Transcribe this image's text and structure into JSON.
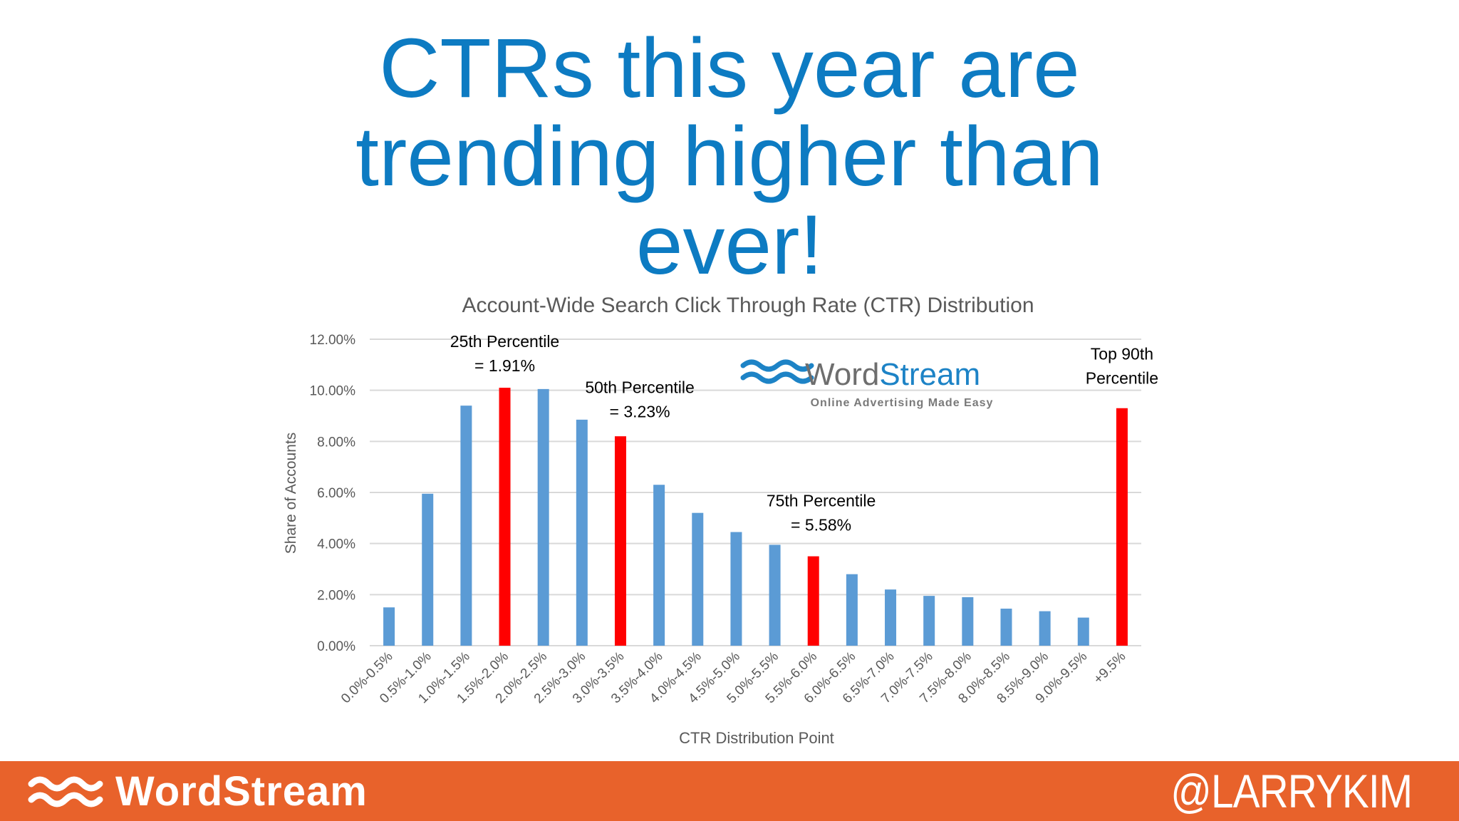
{
  "slide": {
    "title_lines": [
      "CTRs this year are",
      "trending higher than",
      "ever!"
    ]
  },
  "footer": {
    "brand": "WordStream",
    "handle": "@LARRYKIM",
    "background": "#e8622b"
  },
  "chart_logo": {
    "brand_word": "Word",
    "brand_word2": "Stream",
    "tagline": "Online Advertising Made Easy"
  },
  "chart_data": {
    "type": "bar",
    "title": "Account-Wide Search Click Through Rate (CTR) Distribution",
    "xlabel": "CTR Distribution Point",
    "ylabel": "Share of Accounts",
    "ylim": [
      0,
      12
    ],
    "y_ticks": [
      "0.00%",
      "2.00%",
      "4.00%",
      "6.00%",
      "8.00%",
      "10.00%",
      "12.00%"
    ],
    "grid": true,
    "categories": [
      "0.0%-0.5%",
      "0.5%-1.0%",
      "1.0%-1.5%",
      "1.5%-2.0%",
      "2.0%-2.5%",
      "2.5%-3.0%",
      "3.0%-3.5%",
      "3.5%-4.0%",
      "4.0%-4.5%",
      "4.5%-5.0%",
      "5.0%-5.5%",
      "5.5%-6.0%",
      "6.0%-6.5%",
      "6.5%-7.0%",
      "7.0%-7.5%",
      "7.5%-8.0%",
      "8.0%-8.5%",
      "8.5%-9.0%",
      "9.0%-9.5%",
      "+9.5%"
    ],
    "values": [
      1.5,
      5.95,
      9.4,
      10.1,
      10.05,
      8.85,
      8.2,
      6.3,
      5.2,
      4.45,
      3.95,
      3.5,
      2.8,
      2.2,
      1.95,
      1.9,
      1.45,
      1.35,
      1.1,
      9.3
    ],
    "highlighted": [
      3,
      6,
      11,
      19
    ],
    "colors": {
      "bar": "#5b9bd5",
      "highlight": "#ff0000",
      "grid": "#d9d9d9",
      "text": "#595959"
    },
    "annotations": [
      {
        "lines": [
          "25th Percentile",
          "= 1.91%"
        ],
        "category": 3,
        "value": 11.7
      },
      {
        "lines": [
          "50th Percentile",
          "= 3.23%"
        ],
        "category": 6.5,
        "value": 9.9
      },
      {
        "lines": [
          "75th Percentile",
          "= 5.58%"
        ],
        "category": 11.2,
        "value": 5.45
      },
      {
        "lines": [
          "Top 90th",
          "Percentile"
        ],
        "category": 19,
        "value": 11.2
      }
    ]
  }
}
